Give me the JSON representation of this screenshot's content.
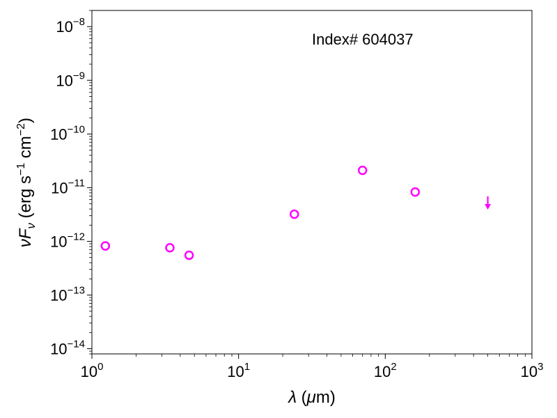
{
  "chart_data": {
    "type": "scatter",
    "title": "",
    "annotation": "Index# 604037",
    "xlabel": "λ (μm)",
    "ylabel": "νF_ν (erg s^-1 cm^-2)",
    "xscale": "log",
    "yscale": "log",
    "xlim": [
      1,
      1000
    ],
    "ylim": [
      8e-15,
      2e-08
    ],
    "x_ticks": [
      {
        "value": 1,
        "base": "10",
        "exp": "0"
      },
      {
        "value": 10,
        "base": "10",
        "exp": "1"
      },
      {
        "value": 100,
        "base": "10",
        "exp": "2"
      },
      {
        "value": 1000,
        "base": "10",
        "exp": "3"
      }
    ],
    "y_ticks": [
      {
        "value": 1e-14,
        "base": "10",
        "exp": "−14"
      },
      {
        "value": 1e-13,
        "base": "10",
        "exp": "−13"
      },
      {
        "value": 1e-12,
        "base": "10",
        "exp": "−12"
      },
      {
        "value": 1e-11,
        "base": "10",
        "exp": "−11"
      },
      {
        "value": 1e-10,
        "base": "10",
        "exp": "−10"
      },
      {
        "value": 1e-09,
        "base": "10",
        "exp": "−9"
      },
      {
        "value": 1e-08,
        "base": "10",
        "exp": "−8"
      }
    ],
    "grid": false,
    "marker_color": "#ff00ff",
    "points": [
      {
        "x": 1.235,
        "y": 8.2e-13
      },
      {
        "x": 3.4,
        "y": 7.6e-13
      },
      {
        "x": 4.6,
        "y": 5.5e-13
      },
      {
        "x": 24,
        "y": 3.2e-12
      },
      {
        "x": 70,
        "y": 2.1e-11
      },
      {
        "x": 160,
        "y": 8.3e-12
      }
    ],
    "upper_limits": [
      {
        "x": 500,
        "y": 4.4e-12
      }
    ]
  }
}
